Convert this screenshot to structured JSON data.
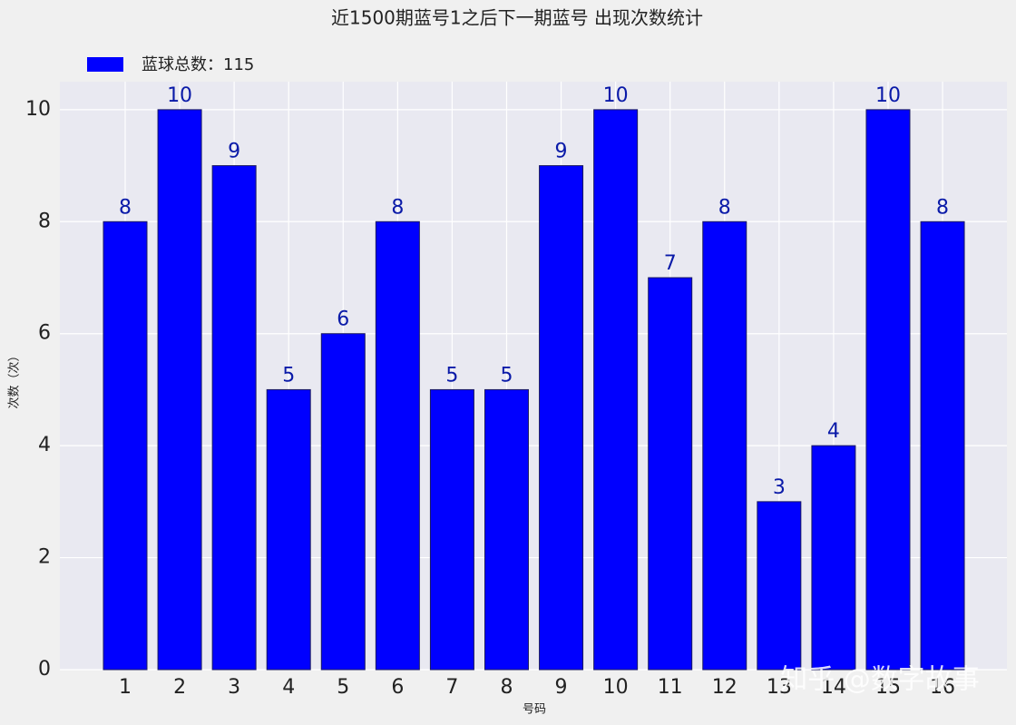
{
  "chart_data": {
    "type": "bar",
    "title": "近1500期蓝号1之后下一期蓝号 出现次数统计",
    "x_label": "号码",
    "y_label": "次数（次）",
    "legend_label": "蓝球总数：115",
    "watermark": "知乎 @数字故事",
    "categories": [
      "1",
      "2",
      "3",
      "4",
      "5",
      "6",
      "7",
      "8",
      "9",
      "10",
      "11",
      "12",
      "13",
      "14",
      "15",
      "16"
    ],
    "values": [
      8,
      10,
      9,
      5,
      6,
      8,
      5,
      5,
      9,
      10,
      7,
      8,
      3,
      4,
      10,
      8
    ],
    "color": "#0000ff",
    "label_color": "#0a1aa8",
    "ylim": [
      0,
      10.5
    ],
    "yticks": [
      0,
      2,
      4,
      6,
      8,
      10
    ],
    "grid": true
  }
}
